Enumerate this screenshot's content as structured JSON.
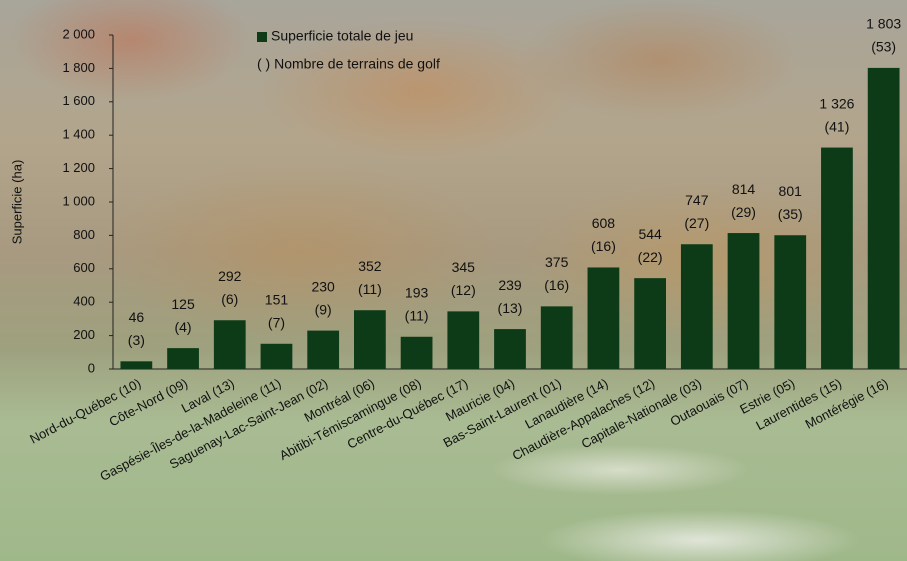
{
  "chart_data": {
    "type": "bar",
    "y_label": "Superficie (ha)",
    "legend": [
      "Superficie totale de jeu",
      "( ) Nombre de terrains de golf"
    ],
    "color": "#0d3b17",
    "categories": [
      "Nord-du-Québec (10)",
      "Côte-Nord (09)",
      "Laval (13)",
      "Gaspésie-Îles-de-la-Madeleine (11)",
      "Saguenay-Lac-Saint-Jean (02)",
      "Montréal (06)",
      "Abitibi-Témiscamingue (08)",
      "Centre-du-Québec (17)",
      "Mauricie (04)",
      "Bas-Saint-Laurent (01)",
      "Lanaudière (14)",
      "Chaudière-Appalaches (12)",
      "Capitale-Nationale (03)",
      "Outaouais (07)",
      "Estrie (05)",
      "Laurentides (15)",
      "Montérégie (16)"
    ],
    "values": [
      46,
      125,
      292,
      151,
      230,
      352,
      193,
      345,
      239,
      375,
      608,
      544,
      747,
      814,
      801,
      1326,
      1803
    ],
    "value_labels": [
      "46",
      "125",
      "292",
      "151",
      "230",
      "352",
      "193",
      "345",
      "239",
      "375",
      "608",
      "544",
      "747",
      "814",
      "801",
      "1 326",
      "1 803"
    ],
    "counts": [
      3,
      4,
      6,
      7,
      9,
      11,
      11,
      12,
      13,
      16,
      16,
      22,
      27,
      29,
      35,
      41,
      53
    ],
    "count_labels": [
      "(3)",
      "(4)",
      "(6)",
      "(7)",
      "(9)",
      "(11)",
      "(11)",
      "(12)",
      "(13)",
      "(16)",
      "(16)",
      "(22)",
      "(27)",
      "(29)",
      "(35)",
      "(41)",
      "(53)"
    ],
    "ylim": [
      0,
      2000
    ],
    "yticks": [
      0,
      200,
      400,
      600,
      800,
      {
        "value": 1000,
        "label": "1 000"
      },
      {
        "value": 1200,
        "label": "1 200"
      },
      {
        "value": 1400,
        "label": "1 400"
      },
      {
        "value": 1600,
        "label": "1 600"
      },
      {
        "value": 1800,
        "label": "1 800"
      },
      {
        "value": 2000,
        "label": "2 000"
      }
    ]
  }
}
